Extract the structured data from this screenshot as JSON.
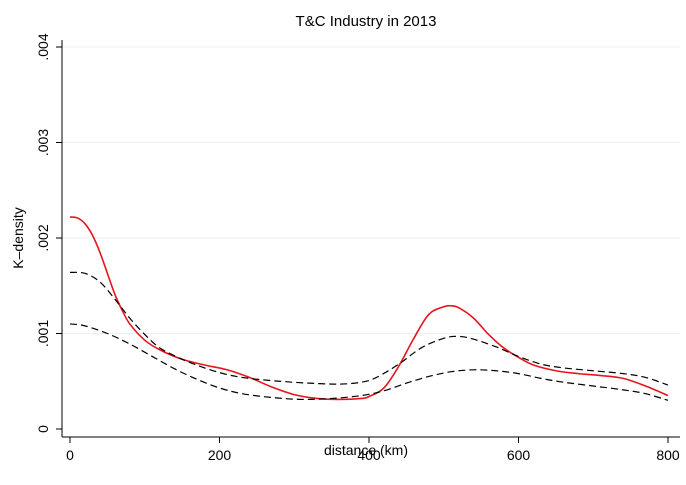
{
  "chart_data": {
    "type": "line",
    "title": "T&C Industry in 2013",
    "xlabel": "distance (km)",
    "ylabel": "K–density",
    "xlim": [
      0,
      800
    ],
    "ylim": [
      0,
      0.004
    ],
    "xticks": [
      {
        "value": 0,
        "label": "0"
      },
      {
        "value": 200,
        "label": "200"
      },
      {
        "value": 400,
        "label": "400"
      },
      {
        "value": 600,
        "label": "600"
      },
      {
        "value": 800,
        "label": "800"
      }
    ],
    "yticks": [
      {
        "value": 0,
        "label": "0"
      },
      {
        "value": 0.001,
        "label": ".001"
      },
      {
        "value": 0.002,
        "label": ".002"
      },
      {
        "value": 0.003,
        "label": ".003"
      },
      {
        "value": 0.004,
        "label": ".004"
      }
    ],
    "grid": true,
    "series": [
      {
        "color": "#e8141b",
        "style": "solid",
        "points": [
          [
            0,
            0.00222
          ],
          [
            10,
            0.00221
          ],
          [
            20,
            0.00215
          ],
          [
            30,
            0.00203
          ],
          [
            40,
            0.00185
          ],
          [
            50,
            0.00163
          ],
          [
            60,
            0.00141
          ],
          [
            70,
            0.00124
          ],
          [
            80,
            0.0011
          ],
          [
            100,
            0.00093
          ],
          [
            120,
            0.00083
          ],
          [
            150,
            0.00073
          ],
          [
            180,
            0.00067
          ],
          [
            210,
            0.00062
          ],
          [
            240,
            0.00054
          ],
          [
            270,
            0.00044
          ],
          [
            300,
            0.00036
          ],
          [
            330,
            0.00032
          ],
          [
            360,
            0.00031
          ],
          [
            390,
            0.00032
          ],
          [
            400,
            0.00034
          ],
          [
            420,
            0.00043
          ],
          [
            440,
            0.00066
          ],
          [
            460,
            0.00095
          ],
          [
            480,
            0.0012
          ],
          [
            500,
            0.00128
          ],
          [
            510,
            0.00129
          ],
          [
            520,
            0.00127
          ],
          [
            540,
            0.00116
          ],
          [
            560,
            0.00099
          ],
          [
            580,
            0.00085
          ],
          [
            600,
            0.00075
          ],
          [
            620,
            0.00067
          ],
          [
            650,
            0.00061
          ],
          [
            680,
            0.00058
          ],
          [
            710,
            0.00056
          ],
          [
            740,
            0.00053
          ],
          [
            770,
            0.00045
          ],
          [
            800,
            0.00035
          ]
        ]
      },
      {
        "color": "#000000",
        "style": "dashed",
        "points": [
          [
            0,
            0.00164
          ],
          [
            20,
            0.00163
          ],
          [
            40,
            0.00154
          ],
          [
            60,
            0.00136
          ],
          [
            80,
            0.00116
          ],
          [
            100,
            0.00099
          ],
          [
            120,
            0.00085
          ],
          [
            150,
            0.00073
          ],
          [
            180,
            0.00064
          ],
          [
            210,
            0.00057
          ],
          [
            240,
            0.00053
          ],
          [
            280,
            0.0005
          ],
          [
            320,
            0.00048
          ],
          [
            360,
            0.00047
          ],
          [
            390,
            0.00049
          ],
          [
            410,
            0.00054
          ],
          [
            440,
            0.00068
          ],
          [
            470,
            0.00085
          ],
          [
            500,
            0.00095
          ],
          [
            520,
            0.00097
          ],
          [
            540,
            0.00094
          ],
          [
            570,
            0.00086
          ],
          [
            600,
            0.00076
          ],
          [
            630,
            0.00068
          ],
          [
            660,
            0.00064
          ],
          [
            700,
            0.00061
          ],
          [
            740,
            0.00058
          ],
          [
            770,
            0.00054
          ],
          [
            800,
            0.00046
          ]
        ]
      },
      {
        "color": "#000000",
        "style": "dashed",
        "points": [
          [
            0,
            0.0011
          ],
          [
            20,
            0.00108
          ],
          [
            50,
            0.001
          ],
          [
            80,
            0.00089
          ],
          [
            110,
            0.00076
          ],
          [
            140,
            0.00063
          ],
          [
            170,
            0.00052
          ],
          [
            200,
            0.00043
          ],
          [
            230,
            0.00037
          ],
          [
            270,
            0.00033
          ],
          [
            310,
            0.00031
          ],
          [
            350,
            0.00032
          ],
          [
            390,
            0.00035
          ],
          [
            420,
            0.0004
          ],
          [
            450,
            0.00048
          ],
          [
            480,
            0.00055
          ],
          [
            510,
            0.0006
          ],
          [
            540,
            0.00062
          ],
          [
            570,
            0.00061
          ],
          [
            600,
            0.00058
          ],
          [
            630,
            0.00053
          ],
          [
            660,
            0.00049
          ],
          [
            700,
            0.00045
          ],
          [
            740,
            0.00041
          ],
          [
            770,
            0.00037
          ],
          [
            800,
            0.0003
          ]
        ]
      }
    ]
  }
}
